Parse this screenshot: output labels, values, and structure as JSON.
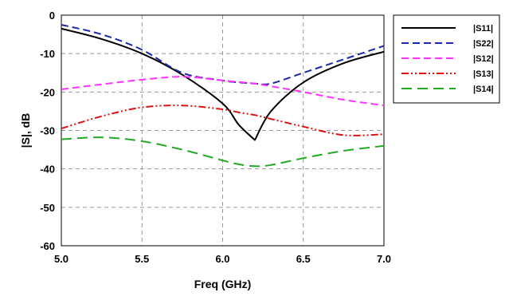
{
  "chart_data": {
    "type": "line",
    "title": "",
    "xlabel": "Freq (GHz)",
    "ylabel": "|S|, dB",
    "xlim": [
      5.0,
      7.0
    ],
    "ylim": [
      -60,
      0
    ],
    "xticks": [
      "5.0",
      "5.5",
      "6.0",
      "6.5",
      "7.0"
    ],
    "yticks": [
      "0",
      "-10",
      "-20",
      "-30",
      "-40",
      "-50",
      "-60"
    ],
    "grid": true,
    "legend_position": "top-right outside plot",
    "x": [
      5.0,
      5.25,
      5.5,
      5.75,
      6.0,
      6.1,
      6.2,
      6.3,
      6.5,
      6.75,
      7.0
    ],
    "series": [
      {
        "name": "|S11|",
        "color": "#000000",
        "style": "solid",
        "values": [
          -3.5,
          -6.2,
          -10.0,
          -15.5,
          -23.0,
          -28.5,
          -32.5,
          -25.0,
          -17.5,
          -12.5,
          -9.5
        ]
      },
      {
        "name": "|S22|",
        "color": "#1a2aa8",
        "style": "dash",
        "values": [
          -2.5,
          -5.0,
          -9.0,
          -15.0,
          -17.0,
          -17.5,
          -17.8,
          -17.8,
          -15.0,
          -11.5,
          -8.0
        ]
      },
      {
        "name": "|S12|",
        "color": "#ff33ff",
        "style": "dash",
        "values": [
          -19.3,
          -18.0,
          -16.8,
          -16.0,
          -17.0,
          -17.4,
          -17.8,
          -18.5,
          -20.0,
          -22.0,
          -23.5
        ]
      },
      {
        "name": "|S13|",
        "color": "#dd1111",
        "style": "dashdotdot",
        "values": [
          -29.5,
          -26.3,
          -24.0,
          -23.5,
          -24.5,
          -25.3,
          -26.0,
          -27.0,
          -29.0,
          -31.2,
          -31.0
        ]
      },
      {
        "name": "|S14|",
        "color": "#22aa22",
        "style": "longdash",
        "values": [
          -32.3,
          -31.8,
          -32.8,
          -35.0,
          -37.8,
          -38.8,
          -39.3,
          -39.0,
          -37.2,
          -35.3,
          -34.0
        ]
      }
    ]
  }
}
